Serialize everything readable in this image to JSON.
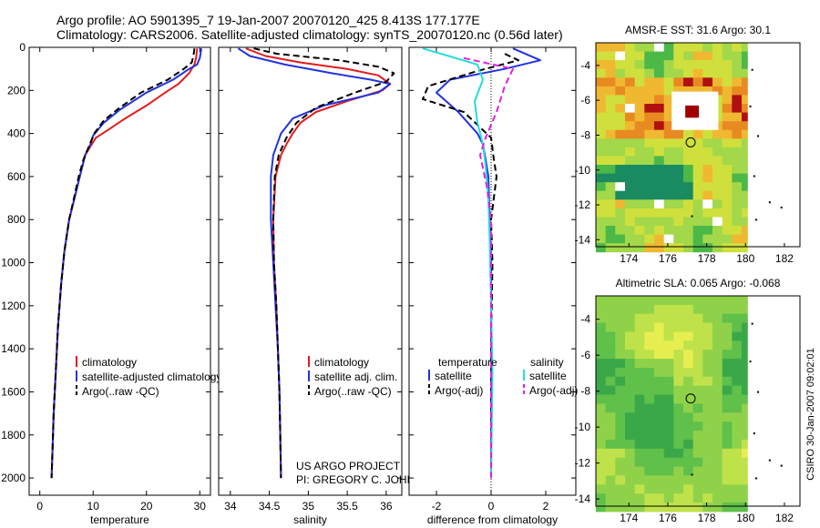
{
  "header": {
    "title_line1": "Argo profile: AO 5901395_7 19-Jan-2007 20070120_425 8.413S 177.177E",
    "title_line2": "Climatology: CARS2006. Satellite-adjusted climatology: synTS_20070120.nc (0.56d later)"
  },
  "colors": {
    "red": "#e41a1c",
    "blue": "#2233dd",
    "black": "#000000",
    "cyan": "#22dddd",
    "magenta": "#e020e0"
  },
  "chart_data": [
    {
      "type": "line",
      "id": "temperature",
      "xlabel": "temperature",
      "xlim": [
        -2,
        32
      ],
      "xticks": [
        0,
        10,
        20,
        30
      ],
      "xtick_labels": [
        "0",
        "10",
        "20",
        "30"
      ],
      "ylim": [
        2080,
        0
      ],
      "yticks": [
        0,
        200,
        400,
        600,
        800,
        1000,
        1200,
        1400,
        1600,
        1800,
        2000
      ],
      "ytick_labels": [
        "0",
        "200",
        "400",
        "600",
        "800",
        "1000",
        "1200",
        "1400",
        "1600",
        "1800",
        "2000"
      ],
      "legend": [
        "climatology",
        "satellite-adjusted climatology",
        "Argo(..raw -QC)"
      ],
      "series": [
        {
          "name": "climatology",
          "color": "red",
          "dash": false,
          "points": [
            [
              29.5,
              5
            ],
            [
              29.3,
              50
            ],
            [
              29,
              80
            ],
            [
              28,
              120
            ],
            [
              26,
              170
            ],
            [
              23.5,
              210
            ],
            [
              20,
              270
            ],
            [
              16,
              330
            ],
            [
              13,
              380
            ],
            [
              10.5,
              420
            ],
            [
              9.5,
              460
            ],
            [
              8.5,
              500
            ],
            [
              7.5,
              600
            ],
            [
              6.5,
              700
            ],
            [
              5.5,
              800
            ],
            [
              4.6,
              950
            ],
            [
              4,
              1100
            ],
            [
              3.4,
              1300
            ],
            [
              3,
              1500
            ],
            [
              2.6,
              1700
            ],
            [
              2.4,
              1850
            ],
            [
              2.2,
              2000
            ]
          ]
        },
        {
          "name": "satellite-adjusted climatology",
          "color": "blue",
          "dash": false,
          "points": [
            [
              30.3,
              5
            ],
            [
              30,
              50
            ],
            [
              29.5,
              80
            ],
            [
              28,
              100
            ],
            [
              25,
              150
            ],
            [
              20,
              210
            ],
            [
              15,
              290
            ],
            [
              12,
              350
            ],
            [
              10,
              410
            ],
            [
              9.5,
              450
            ],
            [
              8.5,
              500
            ],
            [
              7.5,
              600
            ],
            [
              6.5,
              700
            ],
            [
              5.5,
              800
            ],
            [
              4.6,
              950
            ],
            [
              4,
              1100
            ],
            [
              3.4,
              1300
            ],
            [
              3,
              1500
            ],
            [
              2.6,
              1700
            ],
            [
              2.4,
              1850
            ],
            [
              2.2,
              2000
            ]
          ]
        },
        {
          "name": "Argo(..raw -QC)",
          "color": "black",
          "dash": true,
          "points": [
            [
              29,
              5
            ],
            [
              28.8,
              40
            ],
            [
              28.5,
              70
            ],
            [
              27,
              100
            ],
            [
              24,
              150
            ],
            [
              19,
              210
            ],
            [
              15,
              280
            ],
            [
              12,
              340
            ],
            [
              10.2,
              400
            ],
            [
              9.2,
              460
            ],
            [
              8.2,
              520
            ],
            [
              7.3,
              600
            ],
            [
              6.4,
              700
            ],
            [
              5.5,
              800
            ],
            [
              4.6,
              950
            ],
            [
              4,
              1100
            ],
            [
              3.4,
              1300
            ],
            [
              3,
              1500
            ],
            [
              2.6,
              1700
            ],
            [
              2.4,
              1850
            ],
            [
              2.2,
              2000
            ]
          ]
        }
      ]
    },
    {
      "type": "line",
      "id": "salinity",
      "xlabel": "salinity",
      "xlim": [
        33.85,
        36.2
      ],
      "xticks": [
        34,
        34.5,
        35,
        35.5,
        36
      ],
      "xtick_labels": [
        "34",
        "34.5",
        "35",
        "35.5",
        "36"
      ],
      "ylim": [
        2080,
        0
      ],
      "legend": [
        "climatology",
        "satellite adj. clim.",
        "Argo(..raw -QC)"
      ],
      "annotation_line1": "US ARGO PROJECT",
      "annotation_line2": "PI: GREGORY C. JOHNSON",
      "series": [
        {
          "name": "climatology",
          "color": "red",
          "dash": false,
          "points": [
            [
              34.2,
              5
            ],
            [
              34.45,
              40
            ],
            [
              34.9,
              70
            ],
            [
              35.5,
              100
            ],
            [
              35.9,
              130
            ],
            [
              36.05,
              170
            ],
            [
              35.95,
              200
            ],
            [
              35.5,
              250
            ],
            [
              35.1,
              300
            ],
            [
              34.9,
              350
            ],
            [
              34.8,
              400
            ],
            [
              34.72,
              450
            ],
            [
              34.65,
              500
            ],
            [
              34.58,
              600
            ],
            [
              34.55,
              800
            ],
            [
              34.56,
              1000
            ],
            [
              34.59,
              1200
            ],
            [
              34.61,
              1400
            ],
            [
              34.63,
              1600
            ],
            [
              34.64,
              1800
            ],
            [
              34.65,
              2000
            ]
          ]
        },
        {
          "name": "satellite adj. clim.",
          "color": "blue",
          "dash": false,
          "points": [
            [
              34.1,
              5
            ],
            [
              34.25,
              40
            ],
            [
              34.7,
              80
            ],
            [
              35.3,
              120
            ],
            [
              35.8,
              150
            ],
            [
              36.05,
              170
            ],
            [
              35.9,
              210
            ],
            [
              35.2,
              270
            ],
            [
              34.8,
              330
            ],
            [
              34.65,
              400
            ],
            [
              34.55,
              500
            ],
            [
              34.52,
              600
            ],
            [
              34.52,
              800
            ],
            [
              34.55,
              1000
            ],
            [
              34.58,
              1200
            ],
            [
              34.61,
              1400
            ],
            [
              34.63,
              1600
            ],
            [
              34.64,
              1800
            ],
            [
              34.65,
              2000
            ]
          ]
        },
        {
          "name": "Argo(..raw -QC)",
          "color": "black",
          "dash": true,
          "points": [
            [
              34.3,
              5
            ],
            [
              34.6,
              30
            ],
            [
              35.4,
              60
            ],
            [
              35.9,
              90
            ],
            [
              36.1,
              120
            ],
            [
              36.0,
              160
            ],
            [
              35.6,
              210
            ],
            [
              35.1,
              280
            ],
            [
              34.85,
              350
            ],
            [
              34.72,
              420
            ],
            [
              34.62,
              500
            ],
            [
              34.57,
              600
            ],
            [
              34.55,
              800
            ],
            [
              34.56,
              1000
            ],
            [
              34.59,
              1200
            ],
            [
              34.61,
              1400
            ],
            [
              34.63,
              1600
            ],
            [
              34.64,
              1800
            ],
            [
              34.65,
              2000
            ]
          ]
        }
      ]
    },
    {
      "type": "line",
      "id": "difference",
      "xlabel": "difference from climatology",
      "xlim": [
        -3,
        3.1
      ],
      "xticks": [
        -2,
        0,
        2
      ],
      "xtick_labels": [
        "-2",
        "0",
        "2"
      ],
      "ylim": [
        2080,
        0
      ],
      "legend_temperature_title": "temperature",
      "legend_salinity_title": "salinity",
      "legend": [
        "satellite",
        "Argo(-adj)",
        "satellite",
        "Argo(-adj)"
      ],
      "series": [
        {
          "name": "temperature satellite",
          "color": "blue",
          "dash": false,
          "points": [
            [
              0.8,
              5
            ],
            [
              1.8,
              60
            ],
            [
              0.5,
              100
            ],
            [
              -1.5,
              150
            ],
            [
              -2,
              210
            ],
            [
              -1.2,
              300
            ],
            [
              -0.5,
              400
            ],
            [
              -0.3,
              450
            ],
            [
              -0.2,
              520
            ],
            [
              -0.1,
              600
            ],
            [
              -0.05,
              800
            ],
            [
              0,
              1000
            ],
            [
              0,
              2000
            ]
          ]
        },
        {
          "name": "temperature Argo(-adj)",
          "color": "black",
          "dash": true,
          "points": [
            [
              0.5,
              30
            ],
            [
              1,
              60
            ],
            [
              -0.5,
              110
            ],
            [
              -2.3,
              180
            ],
            [
              -2.5,
              240
            ],
            [
              -1,
              300
            ],
            [
              0,
              420
            ],
            [
              0.1,
              520
            ],
            [
              0.2,
              600
            ],
            [
              0.1,
              700
            ],
            [
              0,
              800
            ],
            [
              0.05,
              1000
            ],
            [
              0,
              1400
            ],
            [
              0,
              2000
            ]
          ]
        },
        {
          "name": "salinity satellite",
          "color": "cyan",
          "dash": false,
          "points": [
            [
              -2.5,
              5
            ],
            [
              -0.5,
              80
            ],
            [
              -0.3,
              150
            ],
            [
              -0.6,
              250
            ],
            [
              -0.5,
              350
            ],
            [
              -0.3,
              450
            ],
            [
              -0.2,
              550
            ],
            [
              -0.1,
              700
            ],
            [
              -0.05,
              900
            ],
            [
              0,
              1200
            ],
            [
              0.05,
              1500
            ],
            [
              0,
              2000
            ]
          ]
        },
        {
          "name": "salinity Argo(-adj)",
          "color": "magenta",
          "dash": true,
          "points": [
            [
              -1,
              50
            ],
            [
              0.8,
              100
            ],
            [
              0.5,
              180
            ],
            [
              0.2,
              300
            ],
            [
              -0.2,
              420
            ],
            [
              -0.4,
              500
            ],
            [
              -0.15,
              650
            ],
            [
              0,
              800
            ],
            [
              0,
              2000
            ]
          ]
        }
      ]
    },
    {
      "type": "heatmap",
      "id": "sst",
      "title": "AMSR-E SST: 31.6 Argo: 30.1",
      "xlim": [
        172.3,
        182.8
      ],
      "ylim": [
        -14.4,
        -2.7
      ],
      "xticks": [
        174,
        176,
        178,
        180,
        182
      ],
      "xtick_labels": [
        "174",
        "176",
        "178",
        "180",
        "182"
      ],
      "yticks": [
        -4,
        -6,
        -8,
        -10,
        -12,
        -14
      ],
      "ytick_labels": [
        "-4",
        "-6",
        "-8",
        "-10",
        "-12",
        "-14"
      ],
      "argo_lon": 177.177,
      "argo_lat": -8.413
    },
    {
      "type": "heatmap",
      "id": "sla",
      "title": "Altimetric SLA: 0.065 Argo: -0.068",
      "xlim": [
        172.3,
        182.8
      ],
      "ylim": [
        -14.4,
        -2.7
      ],
      "xticks": [
        174,
        176,
        178,
        180,
        182
      ],
      "xtick_labels": [
        "174",
        "176",
        "178",
        "180",
        "182"
      ],
      "yticks": [
        -4,
        -6,
        -8,
        -10,
        -12,
        -14
      ],
      "ytick_labels": [
        "-4",
        "-6",
        "-8",
        "-10",
        "-12",
        "-14"
      ],
      "argo_lon": 177.177,
      "argo_lat": -8.413
    }
  ],
  "footer": {
    "stamp": "CSIRO 30-Jan-2007 09:02:01"
  }
}
